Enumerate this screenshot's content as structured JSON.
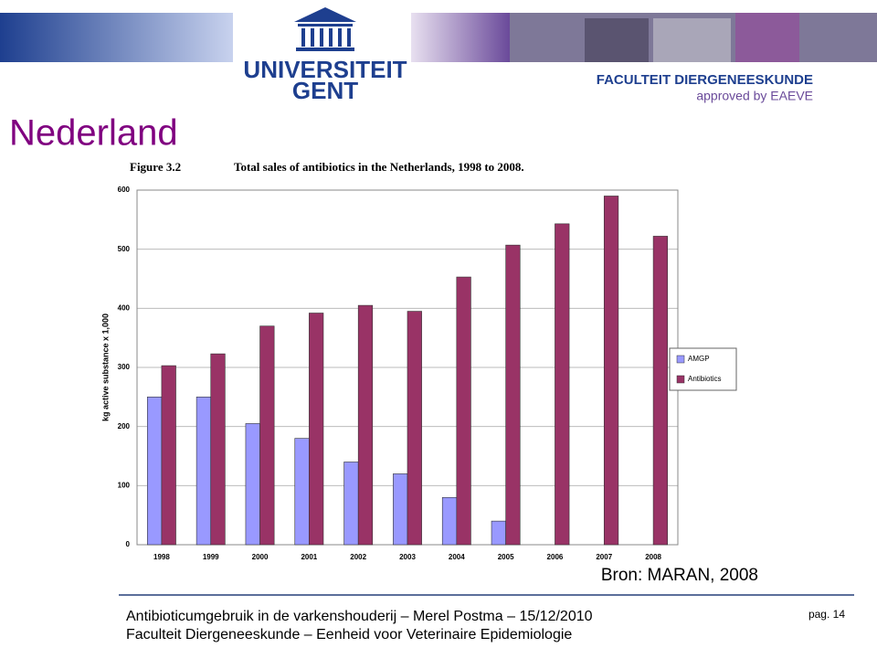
{
  "header": {
    "university": "UNIVERSITEIT",
    "city": "GENT",
    "faculty": "FACULTEIT DIERGENEESKUNDE",
    "approval": "approved by EAEVE"
  },
  "slide_title": "Nederland",
  "chart_data": {
    "type": "bar",
    "figure_label": "Figure 3.2",
    "title": "Total sales of antibiotics in the Netherlands, 1998 to 2008.",
    "y_label": "kg active substance x 1,000",
    "categories": [
      "1998",
      "1999",
      "2000",
      "2001",
      "2002",
      "2003",
      "2004",
      "2005",
      "2006",
      "2007",
      "2008"
    ],
    "series": [
      {
        "name": "AMGP",
        "color": "#9999ff",
        "values": [
          250,
          250,
          205,
          180,
          140,
          120,
          80,
          40,
          null,
          null,
          null
        ]
      },
      {
        "name": "Antibiotics",
        "color": "#993366",
        "values": [
          303,
          323,
          370,
          392,
          405,
          395,
          453,
          507,
          543,
          590,
          522
        ]
      }
    ],
    "ylim": [
      0,
      600
    ],
    "yticks": [
      0,
      100,
      200,
      300,
      400,
      500,
      600
    ],
    "grid": true,
    "legend": "right"
  },
  "source": "Bron: MARAN, 2008",
  "footer": {
    "line1": "Antibioticumgebruik in de varkenshouderij – Merel Postma – 15/12/2010",
    "line2": "Faculteit Diergeneeskunde – Eenheid voor Veterinaire Epidemiologie",
    "page": "pag. 14"
  }
}
